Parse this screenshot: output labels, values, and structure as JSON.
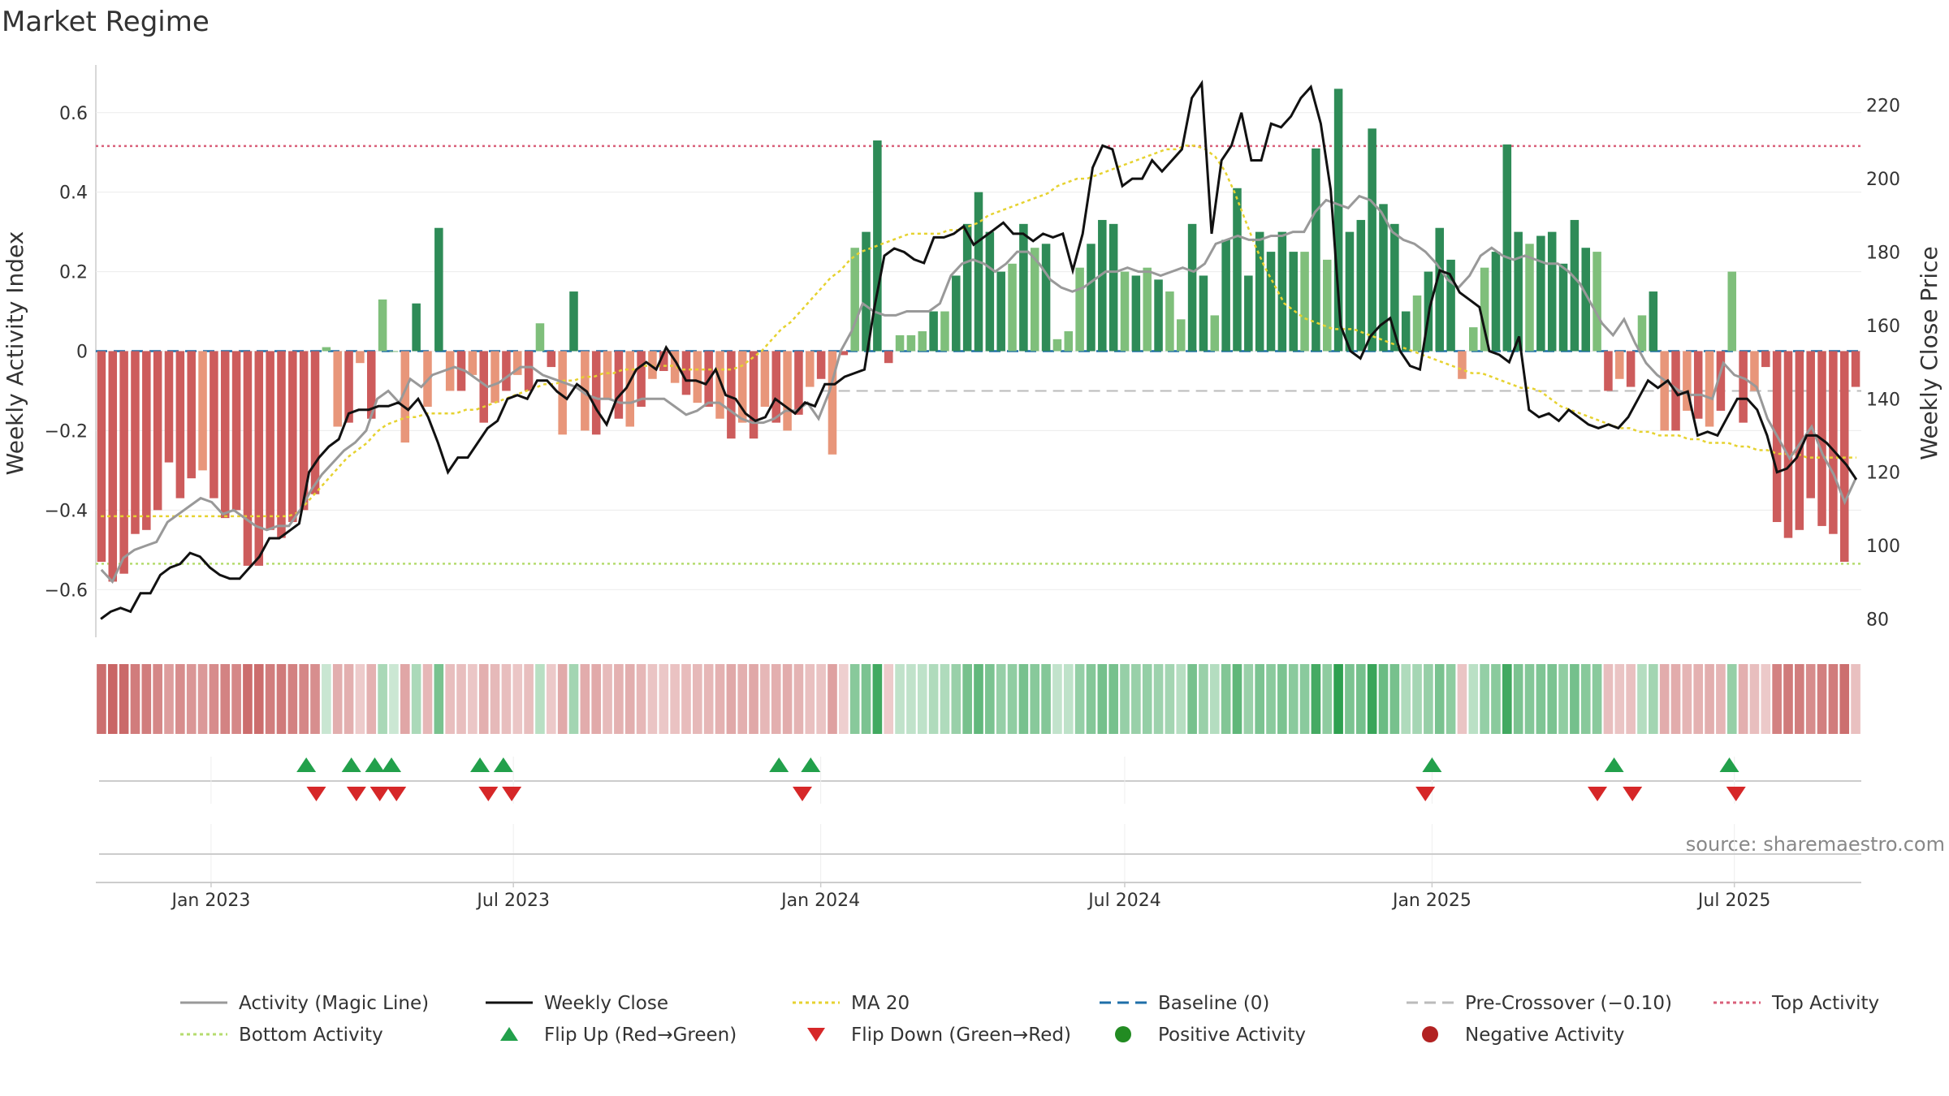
{
  "title": "Market Regime",
  "source": "source: sharemaestro.com",
  "colors": {
    "pos_strong": "#2e8b57",
    "pos_light": "#7fbf7b",
    "neg_strong": "#cd5c5c",
    "neg_light": "#e8967a",
    "activity_line": "#999999",
    "close_line": "#111111",
    "ma_line": "#e6d230",
    "baseline": "#1f6fa8",
    "precross": "#bbbbbb",
    "top": "#d9607a",
    "bottom": "#b5dc6e",
    "flip_up": "#22a04b",
    "flip_down": "#d62728",
    "pos_dot": "#228b22",
    "neg_dot": "#b22222"
  },
  "chart_data": {
    "type": "bar",
    "title": "Market Regime",
    "ylabel": "Weekly Activity Index",
    "y2label": "Weekly Close Price",
    "ylim": [
      -0.72,
      0.72
    ],
    "y2lim": [
      75,
      231
    ],
    "yticks": [
      0.6,
      0.4,
      0.2,
      0,
      -0.2,
      -0.4,
      -0.6
    ],
    "ytick_labels": [
      "0.6",
      "0.4",
      "0.2",
      "0",
      "−0.2",
      "−0.4",
      "−0.6"
    ],
    "y2ticks": [
      220,
      200,
      180,
      160,
      140,
      120,
      100,
      80
    ],
    "x_start": "2022-10-24",
    "x_end": "2025-09-15",
    "xticks": [
      "2023-01-01",
      "2023-07-01",
      "2024-01-01",
      "2024-07-01",
      "2025-01-01",
      "2025-07-01"
    ],
    "xtick_labels": [
      "Jan 2023",
      "Jul 2023",
      "Jan 2024",
      "Jul 2024",
      "Jan 2025",
      "Jul 2025"
    ],
    "activity": [
      -0.53,
      -0.58,
      -0.56,
      -0.46,
      -0.45,
      -0.4,
      -0.28,
      -0.37,
      -0.32,
      -0.3,
      -0.37,
      -0.42,
      -0.4,
      -0.54,
      -0.54,
      -0.45,
      -0.47,
      -0.43,
      -0.4,
      -0.36,
      0.01,
      -0.19,
      -0.18,
      -0.03,
      -0.17,
      0.13,
      0.0,
      -0.23,
      0.12,
      -0.14,
      0.31,
      -0.1,
      -0.1,
      -0.06,
      -0.18,
      -0.13,
      -0.1,
      -0.06,
      -0.1,
      0.07,
      -0.04,
      -0.21,
      0.15,
      -0.2,
      -0.21,
      -0.12,
      -0.17,
      -0.19,
      -0.14,
      -0.07,
      -0.05,
      -0.08,
      -0.11,
      -0.13,
      -0.14,
      -0.17,
      -0.22,
      -0.18,
      -0.22,
      -0.14,
      -0.18,
      -0.2,
      -0.16,
      -0.09,
      -0.07,
      -0.26,
      -0.01,
      0.26,
      0.3,
      0.53,
      -0.03,
      0.04,
      0.04,
      0.05,
      0.1,
      0.1,
      0.19,
      0.32,
      0.4,
      0.3,
      0.2,
      0.22,
      0.32,
      0.26,
      0.27,
      0.03,
      0.05,
      0.21,
      0.27,
      0.33,
      0.32,
      0.2,
      0.19,
      0.21,
      0.18,
      0.15,
      0.08,
      0.32,
      0.19,
      0.09,
      0.28,
      0.41,
      0.19,
      0.3,
      0.25,
      0.3,
      0.25,
      0.25,
      0.51,
      0.23,
      0.66,
      0.3,
      0.33,
      0.56,
      0.37,
      0.32,
      0.1,
      0.14,
      0.2,
      0.31,
      0.23,
      -0.07,
      0.06,
      0.21,
      0.25,
      0.52,
      0.3,
      0.27,
      0.29,
      0.3,
      0.22,
      0.33,
      0.26,
      0.25,
      -0.1,
      -0.07,
      -0.09,
      0.09,
      0.15,
      -0.2,
      -0.2,
      -0.15,
      -0.17,
      -0.19,
      -0.15,
      0.2,
      -0.18,
      -0.1,
      -0.04,
      -0.43,
      -0.47,
      -0.45,
      -0.37,
      -0.44,
      -0.46,
      -0.53,
      -0.09
    ],
    "magic_line": [
      -0.55,
      -0.58,
      -0.52,
      -0.5,
      -0.49,
      -0.48,
      -0.43,
      -0.41,
      -0.39,
      -0.37,
      -0.38,
      -0.41,
      -0.4,
      -0.42,
      -0.44,
      -0.45,
      -0.44,
      -0.44,
      -0.4,
      -0.35,
      -0.31,
      -0.28,
      -0.25,
      -0.23,
      -0.2,
      -0.12,
      -0.1,
      -0.13,
      -0.07,
      -0.09,
      -0.06,
      -0.05,
      -0.04,
      -0.05,
      -0.07,
      -0.09,
      -0.08,
      -0.06,
      -0.04,
      -0.04,
      -0.06,
      -0.07,
      -0.08,
      -0.09,
      -0.11,
      -0.12,
      -0.12,
      -0.13,
      -0.13,
      -0.12,
      -0.12,
      -0.12,
      -0.14,
      -0.16,
      -0.15,
      -0.13,
      -0.13,
      -0.15,
      -0.17,
      -0.18,
      -0.18,
      -0.17,
      -0.15,
      -0.15,
      -0.13,
      -0.17,
      -0.1,
      0.0,
      0.05,
      0.12,
      0.1,
      0.09,
      0.09,
      0.1,
      0.1,
      0.1,
      0.12,
      0.19,
      0.22,
      0.23,
      0.22,
      0.2,
      0.22,
      0.25,
      0.25,
      0.22,
      0.18,
      0.16,
      0.15,
      0.16,
      0.18,
      0.2,
      0.2,
      0.21,
      0.2,
      0.2,
      0.19,
      0.2,
      0.21,
      0.2,
      0.22,
      0.27,
      0.28,
      0.29,
      0.28,
      0.28,
      0.29,
      0.29,
      0.3,
      0.3,
      0.35,
      0.38,
      0.37,
      0.36,
      0.39,
      0.38,
      0.35,
      0.3,
      0.28,
      0.27,
      0.25,
      0.22,
      0.18,
      0.16,
      0.19,
      0.24,
      0.26,
      0.24,
      0.23,
      0.24,
      0.23,
      0.22,
      0.22,
      0.2,
      0.17,
      0.12,
      0.07,
      0.04,
      0.08,
      0.02,
      -0.03,
      -0.06,
      -0.08,
      -0.1,
      -0.11,
      -0.11,
      -0.12,
      -0.03,
      -0.06,
      -0.07,
      -0.09,
      -0.17,
      -0.22,
      -0.27,
      -0.23,
      -0.19,
      -0.26,
      -0.31,
      -0.38,
      -0.32
    ],
    "close": [
      80,
      82,
      83,
      82,
      87,
      87,
      92,
      94,
      95,
      98,
      97,
      94,
      92,
      91,
      91,
      94,
      97,
      102,
      102,
      104,
      106,
      120,
      124,
      127,
      129,
      136,
      137,
      137,
      138,
      138,
      139,
      137,
      140,
      135,
      128,
      120,
      124,
      124,
      128,
      132,
      134,
      140,
      141,
      140,
      145,
      145,
      142,
      140,
      144,
      142,
      137,
      133,
      140,
      143,
      148,
      150,
      148,
      154,
      150,
      145,
      145,
      144,
      148,
      141,
      140,
      136,
      134,
      135,
      140,
      138,
      136,
      139,
      138,
      144,
      144,
      146,
      147,
      148,
      165,
      179,
      181,
      180,
      178,
      177,
      184,
      184,
      185,
      187,
      182,
      184,
      186,
      188,
      185,
      185,
      183,
      185,
      184,
      185,
      175,
      185,
      203,
      209,
      208,
      198,
      200,
      200,
      205,
      202,
      205,
      208,
      222,
      226,
      185,
      205,
      209,
      218,
      205,
      205,
      215,
      214,
      217,
      222,
      225,
      215,
      197,
      160,
      153,
      151,
      157,
      160,
      162,
      153,
      149,
      148,
      165,
      175,
      174,
      169,
      167,
      165,
      153,
      152,
      150,
      157,
      137,
      135,
      136,
      134,
      137,
      135,
      133,
      132,
      133,
      132,
      135,
      140,
      145,
      143,
      145,
      141,
      142,
      130,
      131,
      130,
      135,
      140,
      140,
      137,
      130,
      120,
      121,
      124,
      130,
      130,
      128,
      125,
      122,
      118
    ],
    "ma20": [
      108,
      108,
      108,
      108,
      108,
      108,
      108,
      108,
      108,
      108,
      108,
      108,
      108,
      108,
      108,
      108,
      108,
      108,
      108,
      108,
      109,
      112,
      115,
      118,
      121,
      124,
      126,
      128,
      131,
      133,
      134,
      135,
      135,
      136,
      136,
      136,
      136,
      137,
      137,
      138,
      139,
      140,
      141,
      142,
      143,
      144,
      144,
      145,
      145,
      146,
      146,
      147,
      147,
      148,
      148,
      149,
      149,
      149,
      149,
      148,
      148,
      148,
      148,
      148,
      148,
      149,
      151,
      153,
      156,
      159,
      161,
      164,
      167,
      170,
      173,
      175,
      178,
      180,
      181,
      182,
      183,
      184,
      185,
      185,
      185,
      185,
      186,
      186,
      187,
      188,
      190,
      191,
      192,
      193,
      194,
      195,
      196,
      198,
      199,
      200,
      200,
      201,
      202,
      203,
      204,
      205,
      206,
      207,
      208,
      208,
      209,
      209,
      208,
      206,
      202,
      196,
      189,
      182,
      176,
      171,
      166,
      164,
      162,
      161,
      160,
      159,
      159,
      159,
      158,
      157,
      156,
      155,
      154,
      153,
      152,
      151,
      150,
      149,
      148,
      147,
      147,
      146,
      145,
      144,
      143,
      143,
      142,
      140,
      138,
      137,
      136,
      135,
      134,
      133,
      132,
      132,
      131,
      131,
      130,
      130,
      130,
      129,
      129,
      128,
      128,
      128,
      127,
      127,
      126,
      126,
      125,
      125,
      125,
      124,
      124,
      124,
      124,
      124,
      124
    ],
    "baseline": 0,
    "pre_crossover": -0.1,
    "top_activity": 0.516,
    "bottom_activity": -0.535,
    "flip_up_dates": [
      "2023-02-27",
      "2023-03-26",
      "2023-04-09",
      "2023-04-19",
      "2023-06-11",
      "2023-06-25",
      "2023-12-07",
      "2023-12-26",
      "2025-01-01",
      "2025-04-20",
      "2025-06-28"
    ],
    "flip_down_dates": [
      "2023-03-05",
      "2023-03-29",
      "2023-04-12",
      "2023-04-22",
      "2023-06-16",
      "2023-06-30",
      "2023-12-21",
      "2024-12-28",
      "2025-04-10",
      "2025-05-01",
      "2025-07-02"
    ],
    "legend": [
      {
        "label": "Activity (Magic Line)",
        "type": "line-solid",
        "color": "#999999"
      },
      {
        "label": "Weekly Close",
        "type": "line-solid",
        "color": "#111111"
      },
      {
        "label": "MA 20",
        "type": "line-dotted",
        "color": "#e6d230"
      },
      {
        "label": "Baseline (0)",
        "type": "line-dashed",
        "color": "#1f6fa8"
      },
      {
        "label": "Pre-Crossover (−0.10)",
        "type": "line-dashed",
        "color": "#bbbbbb"
      },
      {
        "label": "Top Activity",
        "type": "line-dotted",
        "color": "#d9607a"
      },
      {
        "label": "Bottom Activity",
        "type": "line-dotted",
        "color": "#b5dc6e"
      },
      {
        "label": "Flip Up (Red→Green)",
        "type": "tri-up",
        "color": "#22a04b"
      },
      {
        "label": "Flip Down (Green→Red)",
        "type": "tri-down",
        "color": "#d62728"
      },
      {
        "label": "Positive Activity",
        "type": "dot",
        "color": "#228b22"
      },
      {
        "label": "Negative Activity",
        "type": "dot",
        "color": "#b22222"
      }
    ],
    "legend_position": "bottom"
  }
}
